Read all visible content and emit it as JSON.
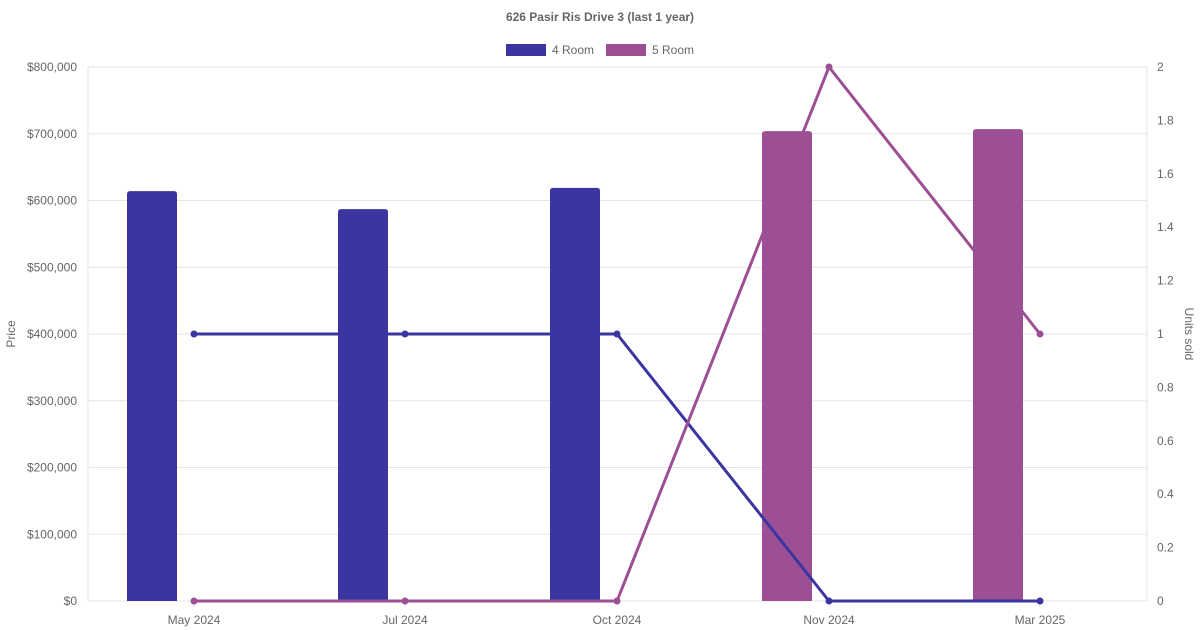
{
  "chart_data": {
    "type": "bar",
    "title": "626 Pasir Ris Drive 3 (last 1 year)",
    "categories": [
      "May 2024",
      "Jul 2024",
      "Oct 2024",
      "Nov 2024",
      "Mar 2025"
    ],
    "y_left": {
      "label": "Price",
      "range": [
        0,
        800000
      ],
      "ticks": [
        "$0",
        "$100,000",
        "$200,000",
        "$300,000",
        "$400,000",
        "$500,000",
        "$600,000",
        "$700,000",
        "$800,000"
      ]
    },
    "y_right": {
      "label": "Units sold",
      "range": [
        0,
        2
      ],
      "ticks": [
        "0",
        "0.2",
        "0.4",
        "0.6",
        "0.8",
        "1",
        "1.2",
        "1.4",
        "1.6",
        "1.8",
        "2"
      ]
    },
    "legend": {
      "placement": "top-center",
      "items": [
        "4 Room",
        "5 Room"
      ]
    },
    "grid": true,
    "colors": {
      "4 Room": "#3a35a0",
      "5 Room": "#9c4f94",
      "grid": "#e5e5e5",
      "text": "#666666"
    },
    "series": [
      {
        "name": "4 Room",
        "type": "bar",
        "axis": "left",
        "values": [
          614000,
          587000,
          619000,
          null,
          null
        ]
      },
      {
        "name": "5 Room",
        "type": "bar",
        "axis": "left",
        "values": [
          null,
          null,
          null,
          704000,
          707000
        ]
      },
      {
        "name": "4 Room",
        "type": "line",
        "axis": "right",
        "values": [
          1,
          1,
          1,
          0,
          0
        ]
      },
      {
        "name": "5 Room",
        "type": "line",
        "axis": "right",
        "values": [
          0,
          0,
          0,
          2,
          1
        ]
      }
    ]
  }
}
